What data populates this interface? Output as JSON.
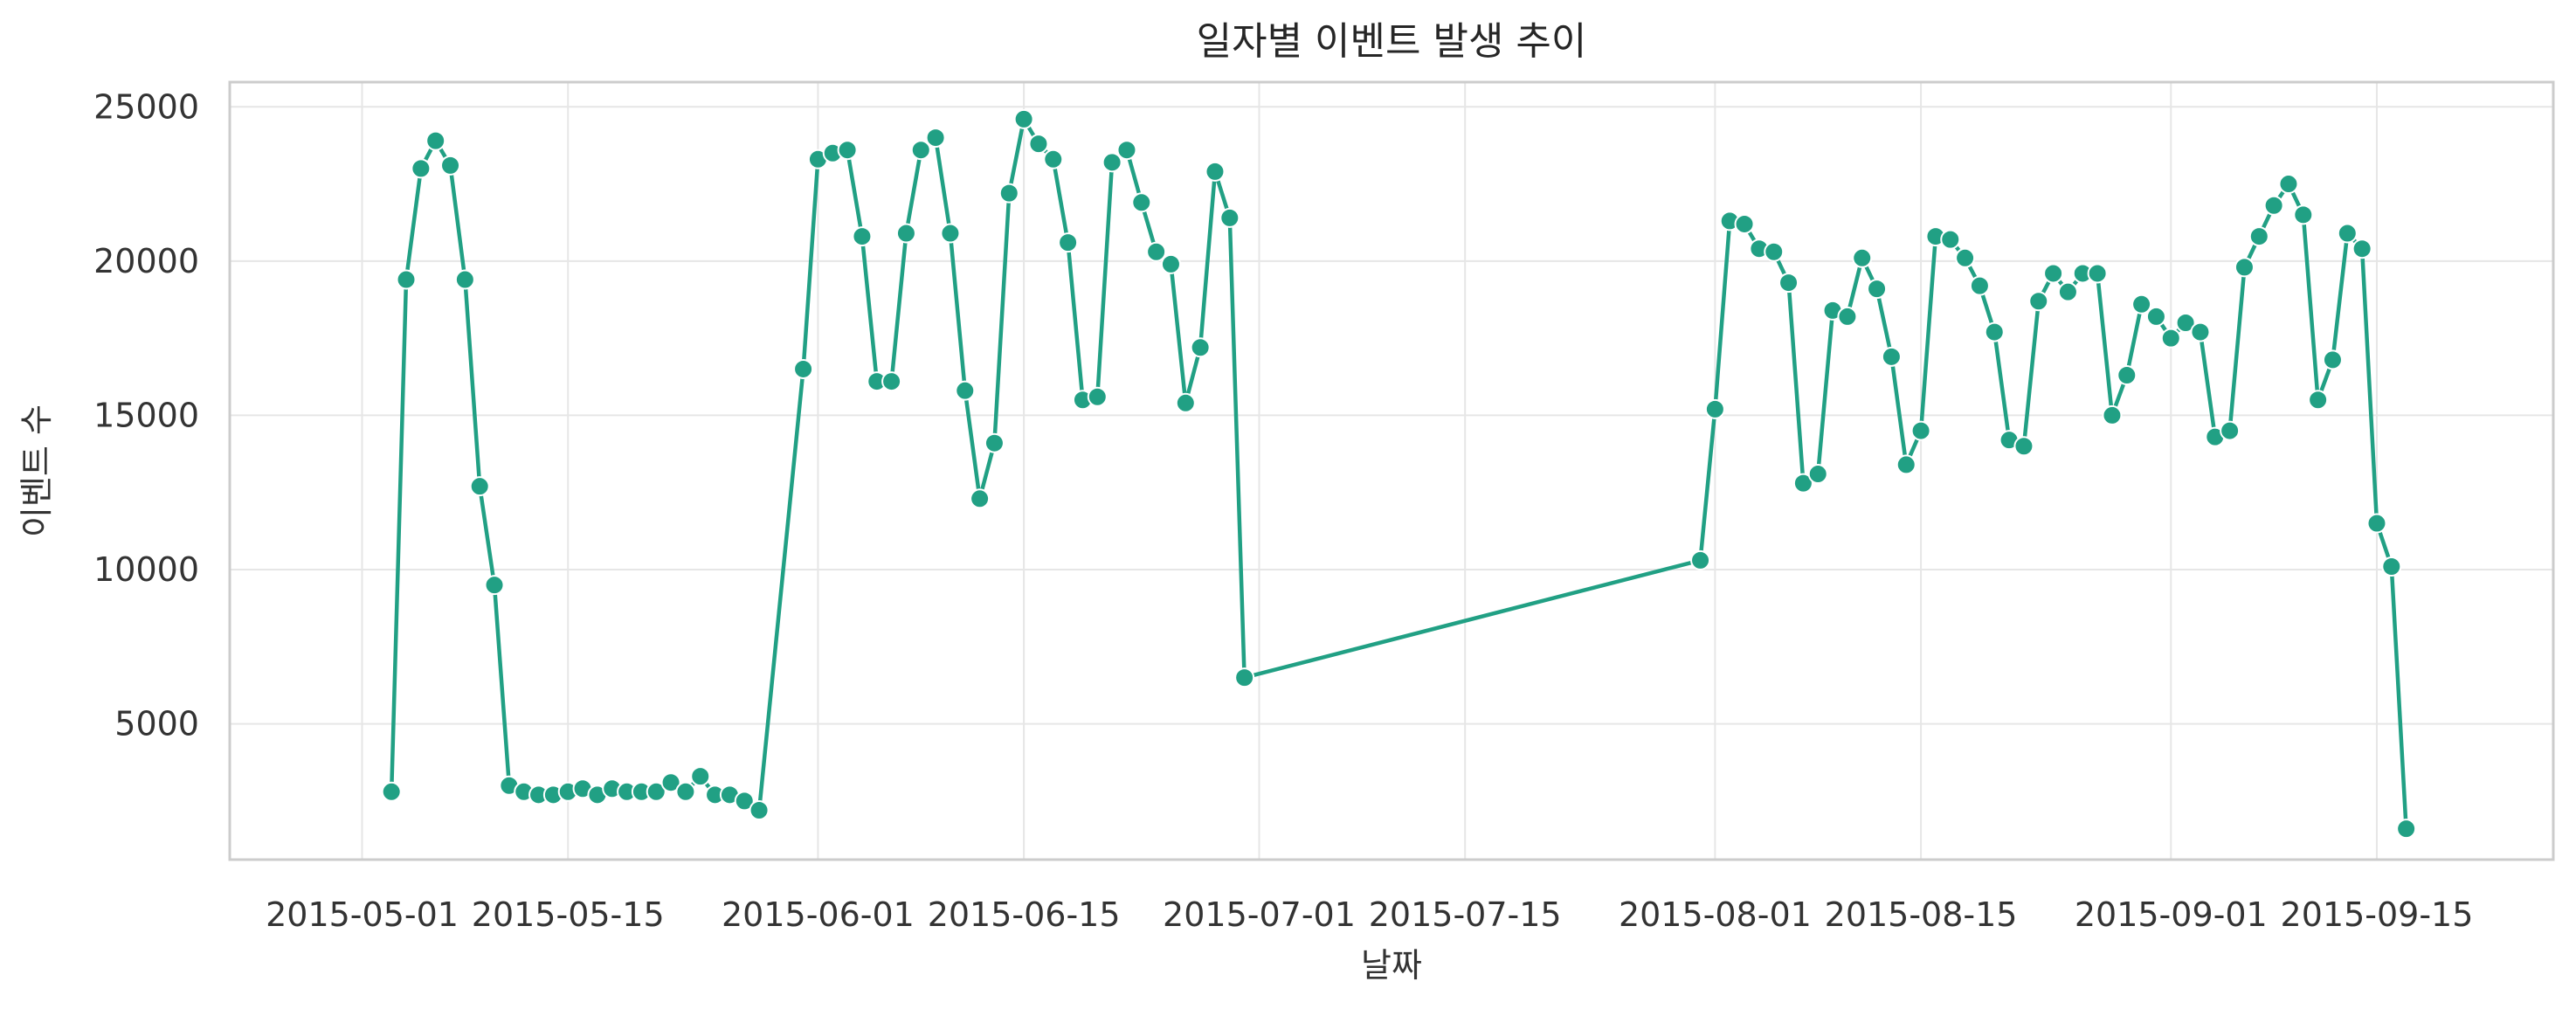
{
  "chart_data": {
    "type": "line",
    "title": "일자별 이벤트 발생 추이",
    "xlabel": "날짜",
    "ylabel": "이벤트 수",
    "series_color": "#21a084",
    "marker_edge_color": "#ffffff",
    "grid": true,
    "xlim": [
      "2015-04-22",
      "2015-09-27"
    ],
    "ylim": [
      600,
      25800
    ],
    "x_ticks": [
      "2015-05-01",
      "2015-05-15",
      "2015-06-01",
      "2015-06-15",
      "2015-07-01",
      "2015-07-15",
      "2015-08-01",
      "2015-08-15",
      "2015-09-01",
      "2015-09-15"
    ],
    "y_ticks": [
      5000,
      10000,
      15000,
      20000,
      25000
    ],
    "y_tick_labels": [
      "5000",
      "10000",
      "15000",
      "20000",
      "25000"
    ],
    "points": [
      [
        "2015-05-03",
        2800
      ],
      [
        "2015-05-04",
        19400
      ],
      [
        "2015-05-05",
        23000
      ],
      [
        "2015-05-06",
        23900
      ],
      [
        "2015-05-07",
        23100
      ],
      [
        "2015-05-08",
        19400
      ],
      [
        "2015-05-09",
        12700
      ],
      [
        "2015-05-10",
        9500
      ],
      [
        "2015-05-11",
        3000
      ],
      [
        "2015-05-12",
        2800
      ],
      [
        "2015-05-13",
        2700
      ],
      [
        "2015-05-14",
        2700
      ],
      [
        "2015-05-15",
        2800
      ],
      [
        "2015-05-16",
        2900
      ],
      [
        "2015-05-17",
        2700
      ],
      [
        "2015-05-18",
        2900
      ],
      [
        "2015-05-19",
        2800
      ],
      [
        "2015-05-20",
        2800
      ],
      [
        "2015-05-21",
        2800
      ],
      [
        "2015-05-22",
        3100
      ],
      [
        "2015-05-23",
        2800
      ],
      [
        "2015-05-24",
        3300
      ],
      [
        "2015-05-25",
        2700
      ],
      [
        "2015-05-26",
        2700
      ],
      [
        "2015-05-27",
        2500
      ],
      [
        "2015-05-28",
        2200
      ],
      [
        "2015-05-31",
        16500
      ],
      [
        "2015-06-01",
        23300
      ],
      [
        "2015-06-02",
        23500
      ],
      [
        "2015-06-03",
        23600
      ],
      [
        "2015-06-04",
        20800
      ],
      [
        "2015-06-05",
        16100
      ],
      [
        "2015-06-06",
        16100
      ],
      [
        "2015-06-07",
        20900
      ],
      [
        "2015-06-08",
        23600
      ],
      [
        "2015-06-09",
        24000
      ],
      [
        "2015-06-10",
        20900
      ],
      [
        "2015-06-11",
        15800
      ],
      [
        "2015-06-12",
        12300
      ],
      [
        "2015-06-13",
        14100
      ],
      [
        "2015-06-14",
        22200
      ],
      [
        "2015-06-15",
        24600
      ],
      [
        "2015-06-16",
        23800
      ],
      [
        "2015-06-17",
        23300
      ],
      [
        "2015-06-18",
        20600
      ],
      [
        "2015-06-19",
        15500
      ],
      [
        "2015-06-20",
        15600
      ],
      [
        "2015-06-21",
        23200
      ],
      [
        "2015-06-22",
        23600
      ],
      [
        "2015-06-23",
        21900
      ],
      [
        "2015-06-24",
        20300
      ],
      [
        "2015-06-25",
        19900
      ],
      [
        "2015-06-26",
        15400
      ],
      [
        "2015-06-27",
        17200
      ],
      [
        "2015-06-28",
        22900
      ],
      [
        "2015-06-29",
        21400
      ],
      [
        "2015-06-30",
        6500
      ],
      [
        "2015-07-31",
        10300
      ],
      [
        "2015-08-01",
        15200
      ],
      [
        "2015-08-02",
        21300
      ],
      [
        "2015-08-03",
        21200
      ],
      [
        "2015-08-04",
        20400
      ],
      [
        "2015-08-05",
        20300
      ],
      [
        "2015-08-06",
        19300
      ],
      [
        "2015-08-07",
        12800
      ],
      [
        "2015-08-08",
        13100
      ],
      [
        "2015-08-09",
        18400
      ],
      [
        "2015-08-10",
        18200
      ],
      [
        "2015-08-11",
        20100
      ],
      [
        "2015-08-12",
        19100
      ],
      [
        "2015-08-13",
        16900
      ],
      [
        "2015-08-14",
        13400
      ],
      [
        "2015-08-15",
        14500
      ],
      [
        "2015-08-16",
        20800
      ],
      [
        "2015-08-17",
        20700
      ],
      [
        "2015-08-18",
        20100
      ],
      [
        "2015-08-19",
        19200
      ],
      [
        "2015-08-20",
        17700
      ],
      [
        "2015-08-21",
        14200
      ],
      [
        "2015-08-22",
        14000
      ],
      [
        "2015-08-23",
        18700
      ],
      [
        "2015-08-24",
        19600
      ],
      [
        "2015-08-25",
        19000
      ],
      [
        "2015-08-26",
        19600
      ],
      [
        "2015-08-27",
        19600
      ],
      [
        "2015-08-28",
        15000
      ],
      [
        "2015-08-29",
        16300
      ],
      [
        "2015-08-30",
        18600
      ],
      [
        "2015-08-31",
        18200
      ],
      [
        "2015-09-01",
        17500
      ],
      [
        "2015-09-02",
        18000
      ],
      [
        "2015-09-03",
        17700
      ],
      [
        "2015-09-04",
        14300
      ],
      [
        "2015-09-05",
        14500
      ],
      [
        "2015-09-06",
        19800
      ],
      [
        "2015-09-07",
        20800
      ],
      [
        "2015-09-08",
        21800
      ],
      [
        "2015-09-09",
        22500
      ],
      [
        "2015-09-10",
        21500
      ],
      [
        "2015-09-11",
        15500
      ],
      [
        "2015-09-12",
        16800
      ],
      [
        "2015-09-13",
        20900
      ],
      [
        "2015-09-14",
        20400
      ],
      [
        "2015-09-15",
        11500
      ],
      [
        "2015-09-16",
        10100
      ],
      [
        "2015-09-17",
        1600
      ]
    ]
  }
}
